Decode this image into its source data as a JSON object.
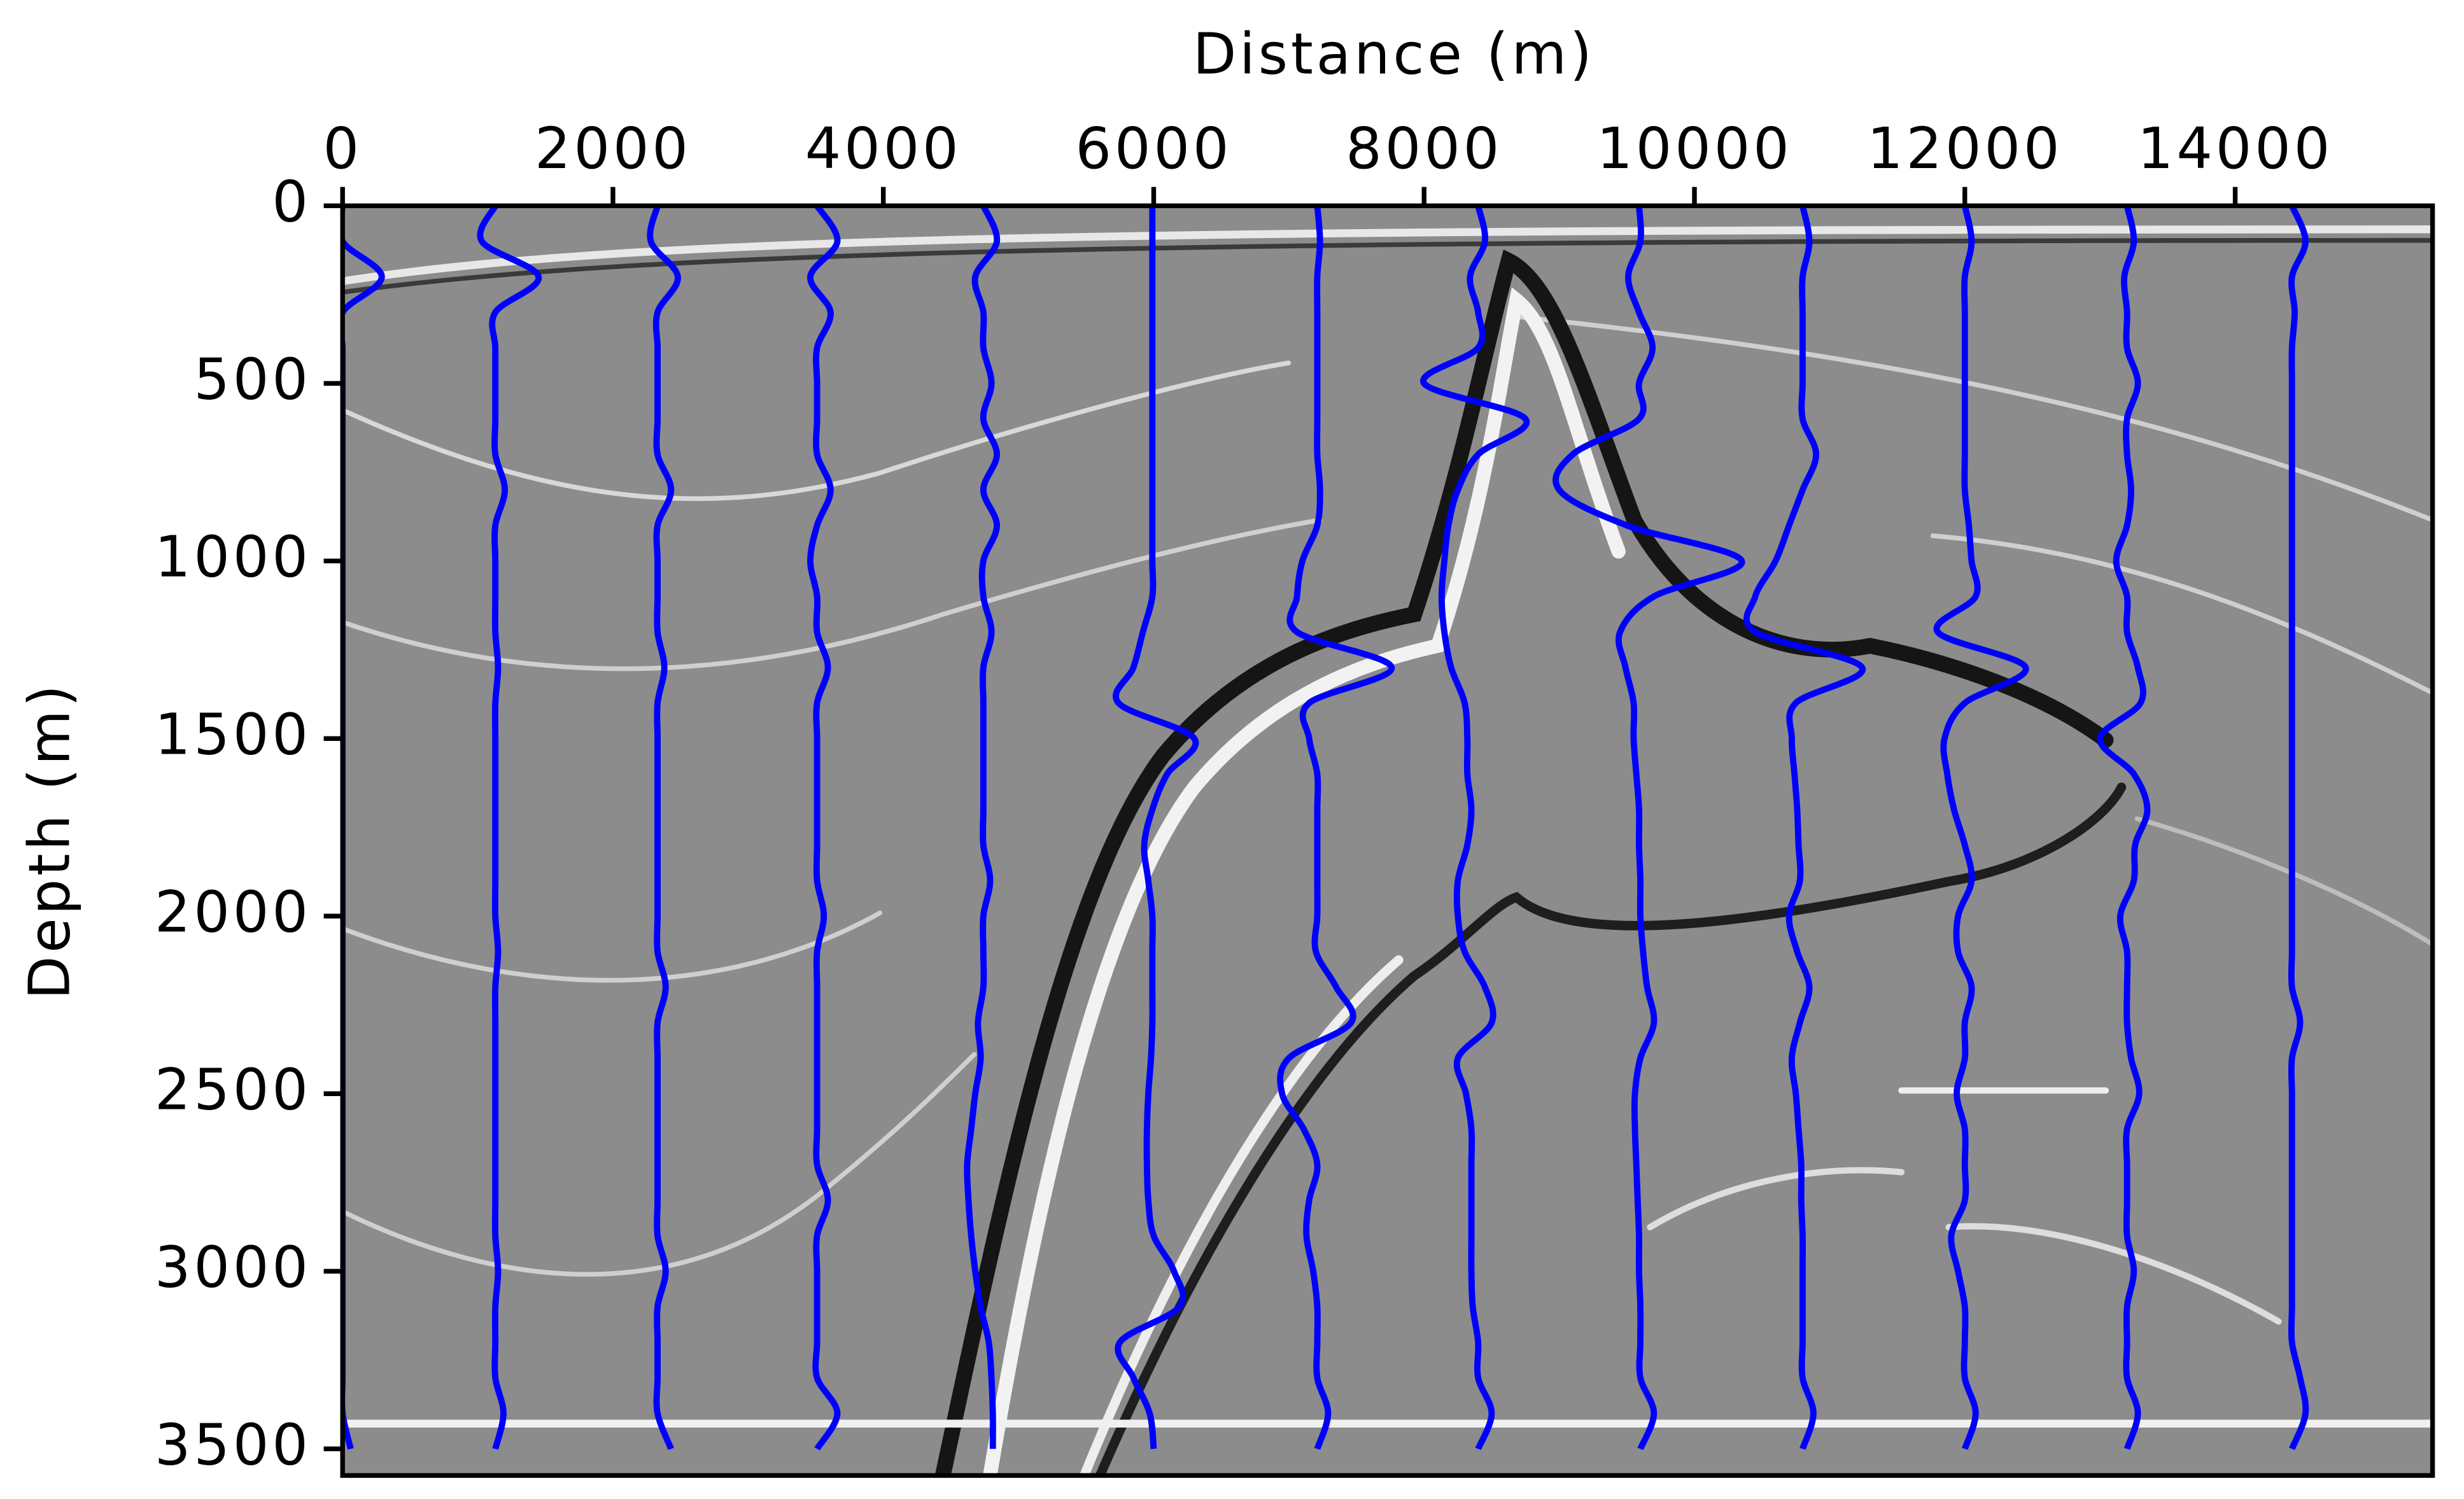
{
  "chart_data": {
    "type": "wiggle",
    "x_label": "Distance (m)",
    "y_label": "Depth (m)",
    "xlim": [
      0,
      15460
    ],
    "ylim": [
      0,
      3575
    ],
    "y_inverted": true,
    "x_axis_position": "top",
    "xticks": [
      0,
      2000,
      4000,
      6000,
      8000,
      10000,
      12000,
      14000
    ],
    "yticks": [
      0,
      500,
      1000,
      1500,
      2000,
      2500,
      3000,
      3500
    ],
    "depths": [
      0,
      100,
      200,
      300,
      400,
      500,
      600,
      700,
      800,
      900,
      1000,
      1100,
      1200,
      1300,
      1400,
      1500,
      1600,
      1700,
      1800,
      1900,
      2000,
      2100,
      2200,
      2300,
      2400,
      2500,
      2600,
      2700,
      2800,
      2900,
      3000,
      3100,
      3200,
      3300,
      3400,
      3500
    ],
    "series": [
      {
        "color": "#0000ff",
        "values": [
          0,
          0,
          290,
          0,
          0,
          0,
          0,
          0,
          0,
          0,
          0,
          0,
          0,
          0,
          0,
          0,
          0,
          0,
          0,
          0,
          0,
          0,
          0,
          0,
          0,
          0,
          0,
          0,
          0,
          0,
          0,
          0,
          0,
          0,
          0,
          60
        ]
      },
      {
        "color": "#0000ff",
        "values": [
          1130,
          1030,
          1450,
          1130,
          1130,
          1130,
          1130,
          1130,
          1200,
          1130,
          1130,
          1130,
          1130,
          1150,
          1130,
          1130,
          1130,
          1130,
          1130,
          1130,
          1130,
          1150,
          1130,
          1130,
          1130,
          1130,
          1130,
          1130,
          1130,
          1130,
          1150,
          1130,
          1130,
          1130,
          1190,
          1130
        ]
      },
      {
        "color": "#0000ff",
        "values": [
          2330,
          2280,
          2480,
          2330,
          2330,
          2330,
          2330,
          2330,
          2430,
          2330,
          2330,
          2330,
          2330,
          2380,
          2330,
          2330,
          2330,
          2330,
          2330,
          2330,
          2330,
          2330,
          2390,
          2330,
          2330,
          2330,
          2330,
          2330,
          2330,
          2330,
          2390,
          2330,
          2330,
          2330,
          2330,
          2430
        ]
      },
      {
        "color": "#0000ff",
        "values": [
          3510,
          3660,
          3460,
          3610,
          3510,
          3510,
          3510,
          3510,
          3610,
          3510,
          3460,
          3510,
          3510,
          3590,
          3510,
          3510,
          3510,
          3510,
          3510,
          3510,
          3560,
          3510,
          3510,
          3510,
          3510,
          3510,
          3510,
          3510,
          3590,
          3510,
          3510,
          3510,
          3510,
          3510,
          3660,
          3510
        ]
      },
      {
        "color": "#0000ff",
        "values": [
          4740,
          4840,
          4680,
          4740,
          4740,
          4800,
          4740,
          4840,
          4740,
          4840,
          4740,
          4740,
          4800,
          4740,
          4740,
          4740,
          4740,
          4740,
          4740,
          4790,
          4740,
          4740,
          4740,
          4700,
          4720,
          4680,
          4650,
          4620,
          4630,
          4650,
          4680,
          4720,
          4780,
          4800,
          4810,
          4810
        ]
      },
      {
        "color": "#0000ff",
        "values": [
          5990,
          5990,
          5990,
          5990,
          5990,
          5990,
          5990,
          5990,
          5990,
          5990,
          5990,
          5990,
          5920,
          5850,
          5740,
          6300,
          6100,
          5990,
          5930,
          5960,
          5990,
          5990,
          5990,
          5990,
          5980,
          5960,
          5950,
          5950,
          5960,
          6000,
          6150,
          6190,
          5750,
          5850,
          5970,
          6000
        ]
      },
      {
        "color": "#0000ff",
        "values": [
          7210,
          7230,
          7210,
          7210,
          7210,
          7210,
          7210,
          7210,
          7230,
          7210,
          7100,
          7060,
          7060,
          7760,
          7150,
          7150,
          7210,
          7210,
          7210,
          7210,
          7210,
          7200,
          7350,
          7460,
          7000,
          6950,
          7110,
          7210,
          7150,
          7130,
          7180,
          7210,
          7210,
          7210,
          7290,
          7210
        ]
      },
      {
        "color": "#0000ff",
        "values": [
          8400,
          8450,
          8340,
          8400,
          8400,
          8000,
          8750,
          8400,
          8250,
          8180,
          8150,
          8130,
          8150,
          8200,
          8300,
          8320,
          8320,
          8350,
          8320,
          8250,
          8250,
          8300,
          8450,
          8500,
          8250,
          8310,
          8350,
          8350,
          8350,
          8350,
          8350,
          8360,
          8400,
          8400,
          8500,
          8400
        ]
      },
      {
        "color": "#0000ff",
        "values": [
          9590,
          9600,
          9510,
          9590,
          9690,
          9590,
          9590,
          9100,
          9000,
          9500,
          10350,
          9700,
          9450,
          9490,
          9550,
          9550,
          9570,
          9590,
          9590,
          9600,
          9600,
          9620,
          9650,
          9700,
          9600,
          9560,
          9560,
          9570,
          9580,
          9590,
          9590,
          9600,
          9600,
          9600,
          9700,
          9600
        ]
      },
      {
        "color": "#0000ff",
        "values": [
          10800,
          10850,
          10800,
          10800,
          10800,
          10800,
          10800,
          10900,
          10800,
          10700,
          10600,
          10450,
          10450,
          11240,
          10750,
          10720,
          10740,
          10760,
          10770,
          10780,
          10700,
          10760,
          10850,
          10780,
          10720,
          10750,
          10770,
          10790,
          10790,
          10800,
          10800,
          10800,
          10800,
          10800,
          10880,
          10800
        ]
      },
      {
        "color": "#0000ff",
        "values": [
          12000,
          12050,
          12000,
          12000,
          12000,
          12000,
          12000,
          12000,
          12000,
          12030,
          12050,
          12080,
          11800,
          12450,
          12000,
          11850,
          11870,
          11920,
          12000,
          12050,
          11950,
          11950,
          12050,
          12000,
          12000,
          11940,
          12000,
          12000,
          12000,
          11900,
          11950,
          12000,
          12000,
          12000,
          12080,
          12000
        ]
      },
      {
        "color": "#0000ff",
        "values": [
          13200,
          13250,
          13180,
          13200,
          13200,
          13280,
          13200,
          13200,
          13230,
          13200,
          13120,
          13200,
          13200,
          13280,
          13300,
          13000,
          13250,
          13350,
          13260,
          13250,
          13150,
          13200,
          13200,
          13200,
          13230,
          13290,
          13200,
          13200,
          13200,
          13200,
          13250,
          13200,
          13200,
          13200,
          13280,
          13200
        ]
      },
      {
        "color": "#0000ff",
        "values": [
          14420,
          14520,
          14420,
          14440,
          14420,
          14420,
          14420,
          14420,
          14420,
          14420,
          14420,
          14420,
          14420,
          14420,
          14420,
          14420,
          14420,
          14420,
          14420,
          14420,
          14420,
          14420,
          14420,
          14480,
          14420,
          14420,
          14420,
          14420,
          14420,
          14420,
          14420,
          14420,
          14420,
          14480,
          14520,
          14420
        ]
      }
    ]
  }
}
